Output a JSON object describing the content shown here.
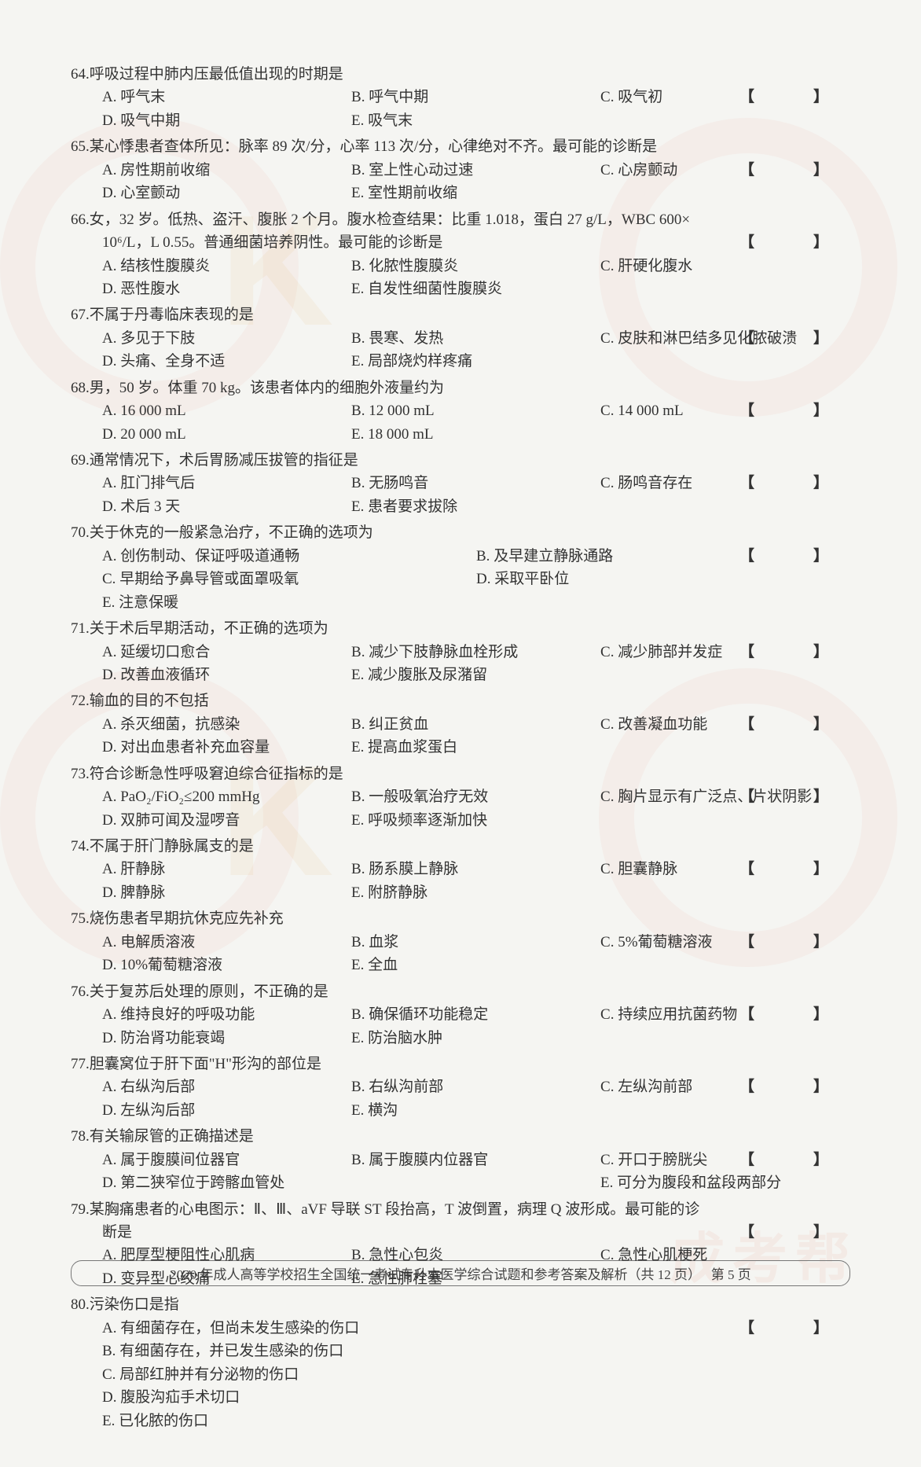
{
  "page": {
    "background": "#f5f5f2",
    "text_color": "#333333",
    "font_family": "SimSun",
    "base_font_size": 19
  },
  "watermark": {
    "circle_color": "rgba(230,60,30,0.04)",
    "k_color": "rgba(235,165,60,0.08)",
    "text_color": "rgba(220,60,40,0.06)",
    "text": "成考帮"
  },
  "bracket": "【　】",
  "questions": [
    {
      "num": "64.",
      "stem": "呼吸过程中肺内压最低值出现的时期是",
      "has_bracket": true,
      "opts": [
        {
          "l": "A.",
          "t": "呼气末"
        },
        {
          "l": "B.",
          "t": "呼气中期"
        },
        {
          "l": "C.",
          "t": "吸气初"
        },
        {
          "l": "D.",
          "t": "吸气中期"
        },
        {
          "l": "E.",
          "t": "吸气末"
        }
      ],
      "layout": "3col"
    },
    {
      "num": "65.",
      "stem": "某心悸患者查体所见：脉率 89 次/分，心率 113 次/分，心律绝对不齐。最可能的诊断是",
      "stem_inline_bracket": true,
      "opts": [
        {
          "l": "A.",
          "t": "房性期前收缩"
        },
        {
          "l": "B.",
          "t": "室上性心动过速"
        },
        {
          "l": "C.",
          "t": "心房颤动"
        },
        {
          "l": "D.",
          "t": "心室颤动"
        },
        {
          "l": "E.",
          "t": "室性期前收缩"
        }
      ],
      "layout": "3col"
    },
    {
      "num": "66.",
      "stem": "女，32 岁。低热、盗汗、腹胀 2 个月。腹水检查结果：比重 1.018，蛋白 27 g/L，WBC 600×",
      "stem2": "10⁶/L，L 0.55。普通细菌培养阴性。最可能的诊断是",
      "has_bracket_line2": true,
      "opts": [
        {
          "l": "A.",
          "t": "结核性腹膜炎"
        },
        {
          "l": "B.",
          "t": "化脓性腹膜炎"
        },
        {
          "l": "C.",
          "t": "肝硬化腹水"
        },
        {
          "l": "D.",
          "t": "恶性腹水"
        },
        {
          "l": "E.",
          "t": "自发性细菌性腹膜炎"
        }
      ],
      "layout": "3col"
    },
    {
      "num": "67.",
      "stem": "不属于丹毒临床表现的是",
      "has_bracket": true,
      "opts": [
        {
          "l": "A.",
          "t": "多见于下肢"
        },
        {
          "l": "B.",
          "t": "畏寒、发热"
        },
        {
          "l": "C.",
          "t": "皮肤和淋巴结多见化脓破溃"
        },
        {
          "l": "D.",
          "t": "头痛、全身不适"
        },
        {
          "l": "E.",
          "t": "局部烧灼样疼痛"
        }
      ],
      "layout": "3col"
    },
    {
      "num": "68.",
      "stem": "男，50 岁。体重 70 kg。该患者体内的细胞外液量约为",
      "has_bracket": true,
      "opts": [
        {
          "l": "A.",
          "t": "16 000 mL"
        },
        {
          "l": "B.",
          "t": "12 000 mL"
        },
        {
          "l": "C.",
          "t": "14 000 mL"
        },
        {
          "l": "D.",
          "t": "20 000 mL"
        },
        {
          "l": "E.",
          "t": "18 000 mL"
        }
      ],
      "layout": "3col"
    },
    {
      "num": "69.",
      "stem": "通常情况下，术后胃肠减压拔管的指征是",
      "has_bracket": true,
      "opts": [
        {
          "l": "A.",
          "t": "肛门排气后"
        },
        {
          "l": "B.",
          "t": "无肠鸣音"
        },
        {
          "l": "C.",
          "t": "肠鸣音存在"
        },
        {
          "l": "D.",
          "t": "术后 3 天"
        },
        {
          "l": "E.",
          "t": "患者要求拔除"
        }
      ],
      "layout": "3col"
    },
    {
      "num": "70.",
      "stem": "关于休克的一般紧急治疗，不正确的选项为",
      "has_bracket": true,
      "opts": [
        {
          "l": "A.",
          "t": "创伤制动、保证呼吸道通畅",
          "w": "50"
        },
        {
          "l": "B.",
          "t": "及早建立静脉通路",
          "w": "50"
        },
        {
          "l": "C.",
          "t": "早期给予鼻导管或面罩吸氧",
          "w": "50"
        },
        {
          "l": "D.",
          "t": "采取平卧位",
          "w": "50"
        },
        {
          "l": "E.",
          "t": "注意保暖",
          "w": "100"
        }
      ],
      "layout": "2col"
    },
    {
      "num": "71.",
      "stem": "关于术后早期活动，不正确的选项为",
      "has_bracket": true,
      "opts": [
        {
          "l": "A.",
          "t": "延缓切口愈合"
        },
        {
          "l": "B.",
          "t": "减少下肢静脉血栓形成"
        },
        {
          "l": "C.",
          "t": "减少肺部并发症"
        },
        {
          "l": "D.",
          "t": "改善血液循环"
        },
        {
          "l": "E.",
          "t": "减少腹胀及尿潴留"
        }
      ],
      "layout": "3col"
    },
    {
      "num": "72.",
      "stem": "输血的目的不包括",
      "has_bracket": true,
      "opts": [
        {
          "l": "A.",
          "t": "杀灭细菌，抗感染"
        },
        {
          "l": "B.",
          "t": "纠正贫血"
        },
        {
          "l": "C.",
          "t": "改善凝血功能"
        },
        {
          "l": "D.",
          "t": "对出血患者补充血容量"
        },
        {
          "l": "E.",
          "t": "提高血浆蛋白"
        }
      ],
      "layout": "3col"
    },
    {
      "num": "73.",
      "stem": "符合诊断急性呼吸窘迫综合征指标的是",
      "has_bracket": true,
      "opts": [
        {
          "l": "A.",
          "t": "PaO₂/FiO₂≤200 mmHg"
        },
        {
          "l": "B.",
          "t": "一般吸氧治疗无效"
        },
        {
          "l": "C.",
          "t": "胸片显示有广泛点、片状阴影"
        },
        {
          "l": "D.",
          "t": "双肺可闻及湿啰音"
        },
        {
          "l": "E.",
          "t": "呼吸频率逐渐加快"
        }
      ],
      "layout": "3col"
    },
    {
      "num": "74.",
      "stem": "不属于肝门静脉属支的是",
      "has_bracket": true,
      "opts": [
        {
          "l": "A.",
          "t": "肝静脉"
        },
        {
          "l": "B.",
          "t": "肠系膜上静脉"
        },
        {
          "l": "C.",
          "t": "胆囊静脉"
        },
        {
          "l": "D.",
          "t": "脾静脉"
        },
        {
          "l": "E.",
          "t": "附脐静脉"
        }
      ],
      "layout": "3col"
    },
    {
      "num": "75.",
      "stem": "烧伤患者早期抗休克应先补充",
      "has_bracket": true,
      "opts": [
        {
          "l": "A.",
          "t": "电解质溶液"
        },
        {
          "l": "B.",
          "t": "血浆"
        },
        {
          "l": "C.",
          "t": "5%葡萄糖溶液"
        },
        {
          "l": "D.",
          "t": "10%葡萄糖溶液"
        },
        {
          "l": "E.",
          "t": "全血"
        }
      ],
      "layout": "3col"
    },
    {
      "num": "76.",
      "stem": "关于复苏后处理的原则，不正确的是",
      "has_bracket": true,
      "opts": [
        {
          "l": "A.",
          "t": "维持良好的呼吸功能"
        },
        {
          "l": "B.",
          "t": "确保循环功能稳定"
        },
        {
          "l": "C.",
          "t": "持续应用抗菌药物"
        },
        {
          "l": "D.",
          "t": "防治肾功能衰竭"
        },
        {
          "l": "E.",
          "t": "防治脑水肿"
        }
      ],
      "layout": "3col"
    },
    {
      "num": "77.",
      "stem": "胆囊窝位于肝下面\"H\"形沟的部位是",
      "has_bracket": true,
      "opts": [
        {
          "l": "A.",
          "t": "右纵沟后部"
        },
        {
          "l": "B.",
          "t": "右纵沟前部"
        },
        {
          "l": "C.",
          "t": "左纵沟前部"
        },
        {
          "l": "D.",
          "t": "左纵沟后部"
        },
        {
          "l": "E.",
          "t": "横沟"
        }
      ],
      "layout": "3col"
    },
    {
      "num": "78.",
      "stem": "有关输尿管的正确描述是",
      "has_bracket": true,
      "opts": [
        {
          "l": "A.",
          "t": "属于腹膜间位器官"
        },
        {
          "l": "B.",
          "t": "属于腹膜内位器官"
        },
        {
          "l": "C.",
          "t": "开口于膀胱尖"
        },
        {
          "l": "D.",
          "t": "第二狭窄位于跨髂血管处"
        },
        {
          "l": "",
          "t": ""
        },
        {
          "l": "E.",
          "t": "可分为腹段和盆段两部分"
        }
      ],
      "layout": "3col"
    },
    {
      "num": "79.",
      "stem": "某胸痛患者的心电图示：Ⅱ、Ⅲ、aVF 导联 ST 段抬高，T 波倒置，病理 Q 波形成。最可能的诊",
      "stem2": "断是",
      "has_bracket_line2": true,
      "opts": [
        {
          "l": "A.",
          "t": "肥厚型梗阻性心肌病"
        },
        {
          "l": "B.",
          "t": "急性心包炎"
        },
        {
          "l": "C.",
          "t": "急性心肌梗死"
        },
        {
          "l": "D.",
          "t": "变异型心绞痛"
        },
        {
          "l": "E.",
          "t": "急性肺栓塞"
        }
      ],
      "layout": "3col"
    },
    {
      "num": "80.",
      "stem": "污染伤口是指",
      "has_bracket": true,
      "opts": [
        {
          "l": "A.",
          "t": "有细菌存在，但尚未发生感染的伤口"
        },
        {
          "l": "B.",
          "t": "有细菌存在，并已发生感染的伤口"
        },
        {
          "l": "C.",
          "t": "局部红肿并有分泌物的伤口"
        },
        {
          "l": "D.",
          "t": "腹股沟疝手术切口"
        },
        {
          "l": "E.",
          "t": "已化脓的伤口"
        }
      ],
      "layout": "1col"
    }
  ],
  "footer": {
    "text": "2020 年成人高等学校招生全国统一考试专升本医学综合试题和参考答案及解析（共 12 页）",
    "page": "第 5 页"
  }
}
